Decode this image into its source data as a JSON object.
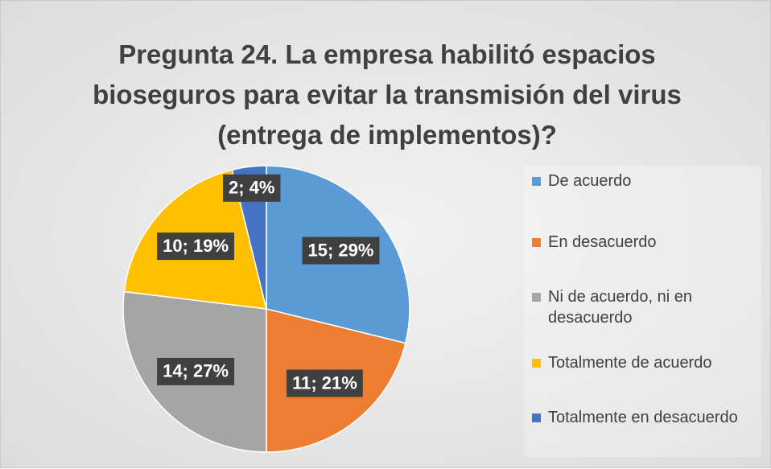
{
  "chart_data": {
    "type": "pie",
    "title": "Pregunta 24. La empresa habilitó espacios bioseguros para evitar la transmisión del virus (entrega de implementos)?",
    "categories": [
      "De acuerdo",
      "En desacuerdo",
      "Ni de acuerdo, ni en desacuerdo",
      "Totalmente de acuerdo",
      "Totalmente en desacuerdo"
    ],
    "values": [
      15,
      11,
      14,
      10,
      2
    ],
    "value_labels": [
      "15; 29%",
      "11; 21%",
      "14; 27%",
      "10; 19%",
      "2; 4%"
    ],
    "colors": [
      "#5b9bd5",
      "#ed7d31",
      "#a5a5a5",
      "#ffc000",
      "#4472c4"
    ],
    "legend": "right"
  }
}
